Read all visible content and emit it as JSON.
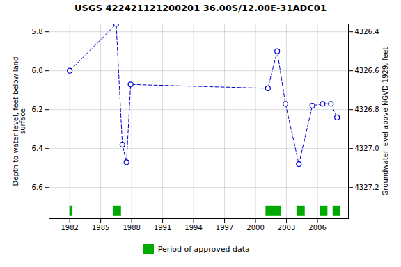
{
  "chart_data": {
    "type": "line",
    "title": "USGS 422421121200201 36.00S/12.00E-31ADC01",
    "y_label": "Depth to water level, feet below land\nsurface",
    "y2_label": "Groundwater level above NGVD 1929, feet",
    "x": [
      1982.0,
      1986.5,
      1987.1,
      1987.5,
      1987.9,
      2001.2,
      2002.1,
      2002.9,
      2004.2,
      2005.5,
      2006.5,
      2007.3,
      2007.9
    ],
    "series": [
      {
        "values": [
          6.0,
          5.76,
          6.38,
          6.47,
          6.07,
          6.09,
          5.9,
          6.17,
          6.48,
          6.18,
          6.17,
          6.17,
          6.24
        ],
        "color": "#0000cc",
        "line_style": "dashed",
        "marker": "o"
      },
      {
        "name": "Period of approved data",
        "type": "span",
        "color": "#00aa00",
        "segments": [
          [
            1982.0,
            1982.3
          ],
          [
            1986.2,
            1987.0
          ],
          [
            2001.0,
            2002.5
          ],
          [
            2004.0,
            2004.8
          ],
          [
            2006.3,
            2007.0
          ],
          [
            2007.5,
            2008.2
          ]
        ],
        "y_band": [
          6.695,
          6.745
        ]
      }
    ],
    "xlim": [
      1980,
      2009
    ],
    "xticks": [
      1982,
      1985,
      1988,
      1991,
      1994,
      1997,
      2000,
      2003,
      2006
    ],
    "ylim": [
      6.76,
      5.76
    ],
    "yticks": [
      5.8,
      {
        "value": 6,
        "label": "6.0"
      },
      6.2,
      6.4,
      6.6
    ],
    "y2lim": [
      4327.36,
      4326.36
    ],
    "y2ticks": [
      4326.4,
      4326.6,
      4326.8,
      {
        "value": 4327,
        "label": "4327.0"
      },
      4327.2
    ],
    "grid": true,
    "legend": "bottom"
  }
}
